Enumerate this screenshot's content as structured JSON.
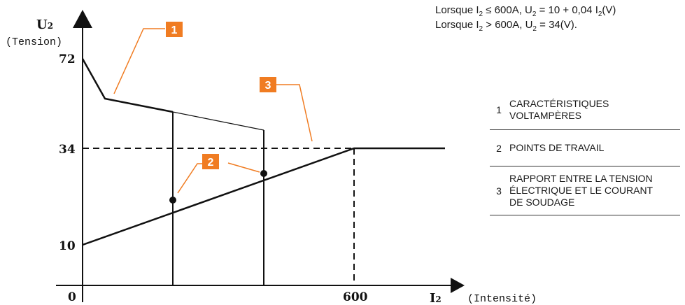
{
  "axis": {
    "y_label": "U",
    "y_sub": "2",
    "y_unit": "(Tension)",
    "x_label": "I",
    "x_sub": "2",
    "x_unit": "(Intensité)",
    "ticks_y": [
      "72",
      "34",
      "10"
    ],
    "ticks_x": [
      "0",
      "600"
    ]
  },
  "badges": [
    "1",
    "2",
    "3"
  ],
  "formula": {
    "line1": {
      "lead": "Lorsque I",
      "s1": "2",
      "m1": " ≤ 600A, U",
      "s2": "2",
      "m2": " = 10 + 0,04 I",
      "s3": "2",
      "tail": "(V)"
    },
    "line2": {
      "lead": "Lorsque I",
      "s1": "2",
      "m1": " > 600A, U",
      "s2": "2",
      "tail": " = 34(V)."
    }
  },
  "legend": [
    {
      "num": "1",
      "line1": "CARACTÉRISTIQUES",
      "line2": "VOLTAMPÈRES"
    },
    {
      "num": "2",
      "line1": "POINTS DE TRAVAIL"
    },
    {
      "num": "3",
      "line1": "RAPPORT ENTRE LA TENSION",
      "line2": "ÉLECTRIQUE ET LE COURANT",
      "line3": "DE SOUDAGE"
    }
  ],
  "colors": {
    "accent": "#f07c22",
    "line": "#111111"
  }
}
